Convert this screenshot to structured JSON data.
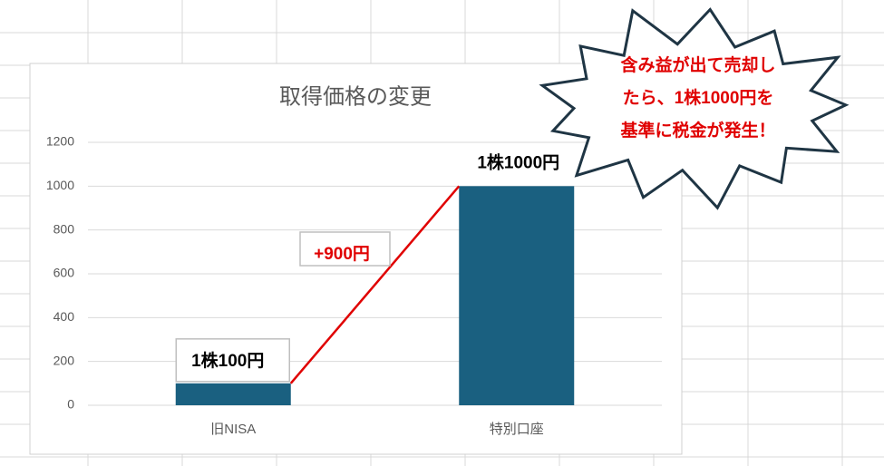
{
  "chart_data": {
    "type": "bar",
    "title": "取得価格の変更",
    "categories": [
      "旧NISA",
      "特別口座"
    ],
    "values": [
      100,
      1000
    ],
    "value_labels": [
      "1株100円",
      "1株1000円"
    ],
    "color": "#1a6080",
    "ylim": [
      0,
      1200
    ],
    "yticks": [
      0,
      200,
      400,
      600,
      800,
      1000,
      1200
    ],
    "grid": true,
    "connector_color": "#e00000",
    "annotation": "+900円",
    "callout": [
      "含み益が出て売却し",
      "たら、1株1000円を",
      "基準に税金が発生！"
    ]
  }
}
